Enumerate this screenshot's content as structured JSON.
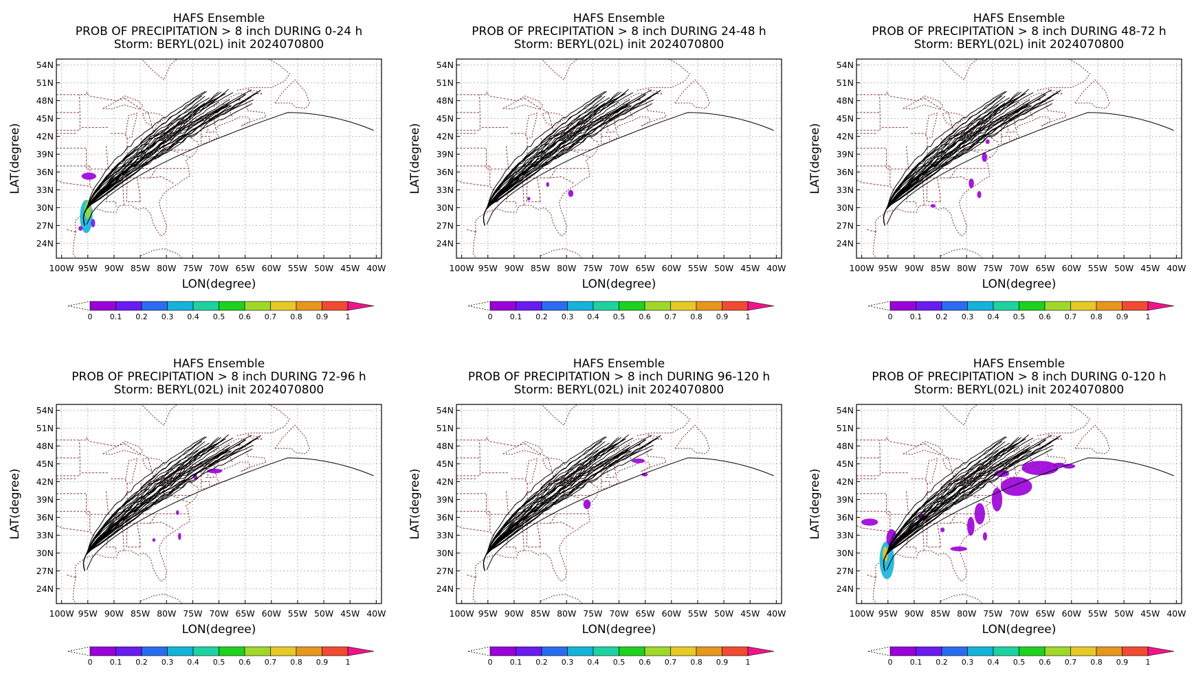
{
  "panels": [
    {
      "title": "HAFS Ensemble",
      "subtitle": "PROB OF PRECIPITATION > 8 inch DURING  0-24 h",
      "storm": "Storm: BERYL(02L) init 2024070800",
      "blobs": [
        [
          -95.3,
          28.5,
          1.2,
          2.8,
          0.35
        ],
        [
          -95,
          29.6,
          0.6,
          1.5,
          0.7
        ],
        [
          -96.4,
          26.5,
          0.4,
          0.4,
          0.1
        ],
        [
          -94.8,
          35.3,
          1.4,
          0.6,
          0.1
        ],
        [
          -94,
          27.4,
          0.4,
          0.7,
          0.15
        ]
      ]
    },
    {
      "title": "HAFS Ensemble",
      "subtitle": "PROB OF PRECIPITATION > 8 inch DURING 24-48 h",
      "storm": "Storm: BERYL(02L) init 2024070800",
      "blobs": [
        [
          -93.3,
          31.4,
          0.4,
          0.5,
          0.1
        ],
        [
          -83.6,
          33.9,
          0.3,
          0.4,
          0.1
        ],
        [
          -79.2,
          32.4,
          0.5,
          0.6,
          0.1
        ],
        [
          -87.2,
          31.5,
          0.3,
          0.3,
          0.1
        ]
      ]
    },
    {
      "title": "HAFS Ensemble",
      "subtitle": "PROB OF PRECIPITATION > 8 inch DURING 48-72 h",
      "storm": "Storm: BERYL(02L) init 2024070800",
      "blobs": [
        [
          -76,
          41.1,
          0.4,
          0.4,
          0.1
        ],
        [
          -76.6,
          38.5,
          0.5,
          0.8,
          0.1
        ],
        [
          -79.1,
          34.1,
          0.5,
          0.8,
          0.1
        ],
        [
          -77.6,
          32.2,
          0.4,
          0.6,
          0.1
        ],
        [
          -86.4,
          30.3,
          0.5,
          0.3,
          0.1
        ]
      ]
    },
    {
      "title": "HAFS Ensemble",
      "subtitle": "PROB OF PRECIPITATION > 8 inch DURING 72-96 h",
      "storm": "Storm: BERYL(02L) init 2024070800",
      "blobs": [
        [
          -74.5,
          42.8,
          0.4,
          0.4,
          0.1
        ],
        [
          -70.8,
          43.8,
          1.4,
          0.4,
          0.1
        ],
        [
          -77.9,
          36.8,
          0.3,
          0.4,
          0.1
        ],
        [
          -77.5,
          32.8,
          0.3,
          0.6,
          0.1
        ],
        [
          -82.4,
          32.2,
          0.3,
          0.3,
          0.1
        ]
      ]
    },
    {
      "title": "HAFS Ensemble",
      "subtitle": "PROB OF PRECIPITATION > 8 inch DURING 96-120 h",
      "storm": "Storm: BERYL(02L) init 2024070800",
      "blobs": [
        [
          -76.1,
          38.2,
          0.7,
          0.8,
          0.1
        ],
        [
          -66.3,
          45.5,
          1.2,
          0.4,
          0.1
        ],
        [
          -65.1,
          43.2,
          0.6,
          0.3,
          0.1
        ]
      ]
    },
    {
      "title": "HAFS Ensemble",
      "subtitle": "PROB OF PRECIPITATION > 8 inch DURING 0-120 h",
      "storm": "Storm: BERYL(02L) init 2024070800",
      "blobs": [
        [
          -95.2,
          28.8,
          1.4,
          3.2,
          0.4
        ],
        [
          -95.5,
          29.8,
          0.5,
          1.3,
          0.8
        ],
        [
          -94.3,
          32.5,
          1,
          1.5,
          0.1
        ],
        [
          -98.5,
          35.2,
          1.6,
          0.6,
          0.1
        ],
        [
          -88.5,
          36.1,
          0.7,
          0.5,
          0.1
        ],
        [
          -84.6,
          33.9,
          0.4,
          0.4,
          0.1
        ],
        [
          -81.5,
          30.7,
          1.6,
          0.4,
          0.1
        ],
        [
          -79.2,
          34.5,
          0.7,
          1.6,
          0.1
        ],
        [
          -77.5,
          36.6,
          1,
          1.8,
          0.1
        ],
        [
          -74.2,
          39,
          1,
          2,
          0.1
        ],
        [
          -70.5,
          41.2,
          3,
          1.6,
          0.1
        ],
        [
          -66,
          44.3,
          3.5,
          1.2,
          0.1
        ],
        [
          -60.5,
          44.6,
          1.2,
          0.4,
          0.1
        ],
        [
          -62.4,
          44.8,
          1.2,
          0.4,
          0.1
        ],
        [
          -76.5,
          32.8,
          0.4,
          0.7,
          0.1
        ],
        [
          -73.3,
          43.4,
          1.4,
          0.6,
          0.1
        ]
      ]
    }
  ],
  "axes": {
    "xlabel": "LON(degree)",
    "ylabel": "LAT(degree)",
    "lon_range": [
      -101,
      -39
    ],
    "lat_range": [
      21.5,
      55
    ],
    "lat_ticks": [
      "54N",
      "51N",
      "48N",
      "45N",
      "42N",
      "39N",
      "36N",
      "33N",
      "30N",
      "27N",
      "24N"
    ],
    "lon_ticks": [
      "100W",
      "95W",
      "90W",
      "85W",
      "80W",
      "75W",
      "70W",
      "65W",
      "60W",
      "55W",
      "50W",
      "45W",
      "40W"
    ]
  },
  "colorbar": {
    "labels": [
      "0",
      "0.1",
      "0.2",
      "0.3",
      "0.4",
      "0.5",
      "0.6",
      "0.7",
      "0.8",
      "0.9",
      "1"
    ],
    "colors": [
      "#9a00d8",
      "#6a1cf0",
      "#2a6cf0",
      "#14b4d8",
      "#1ed2a0",
      "#1ed21e",
      "#a0d82a",
      "#e6c828",
      "#e6961e",
      "#f04b32"
    ],
    "over_color": "#f0148c"
  },
  "ensemble_tracks": 30
}
